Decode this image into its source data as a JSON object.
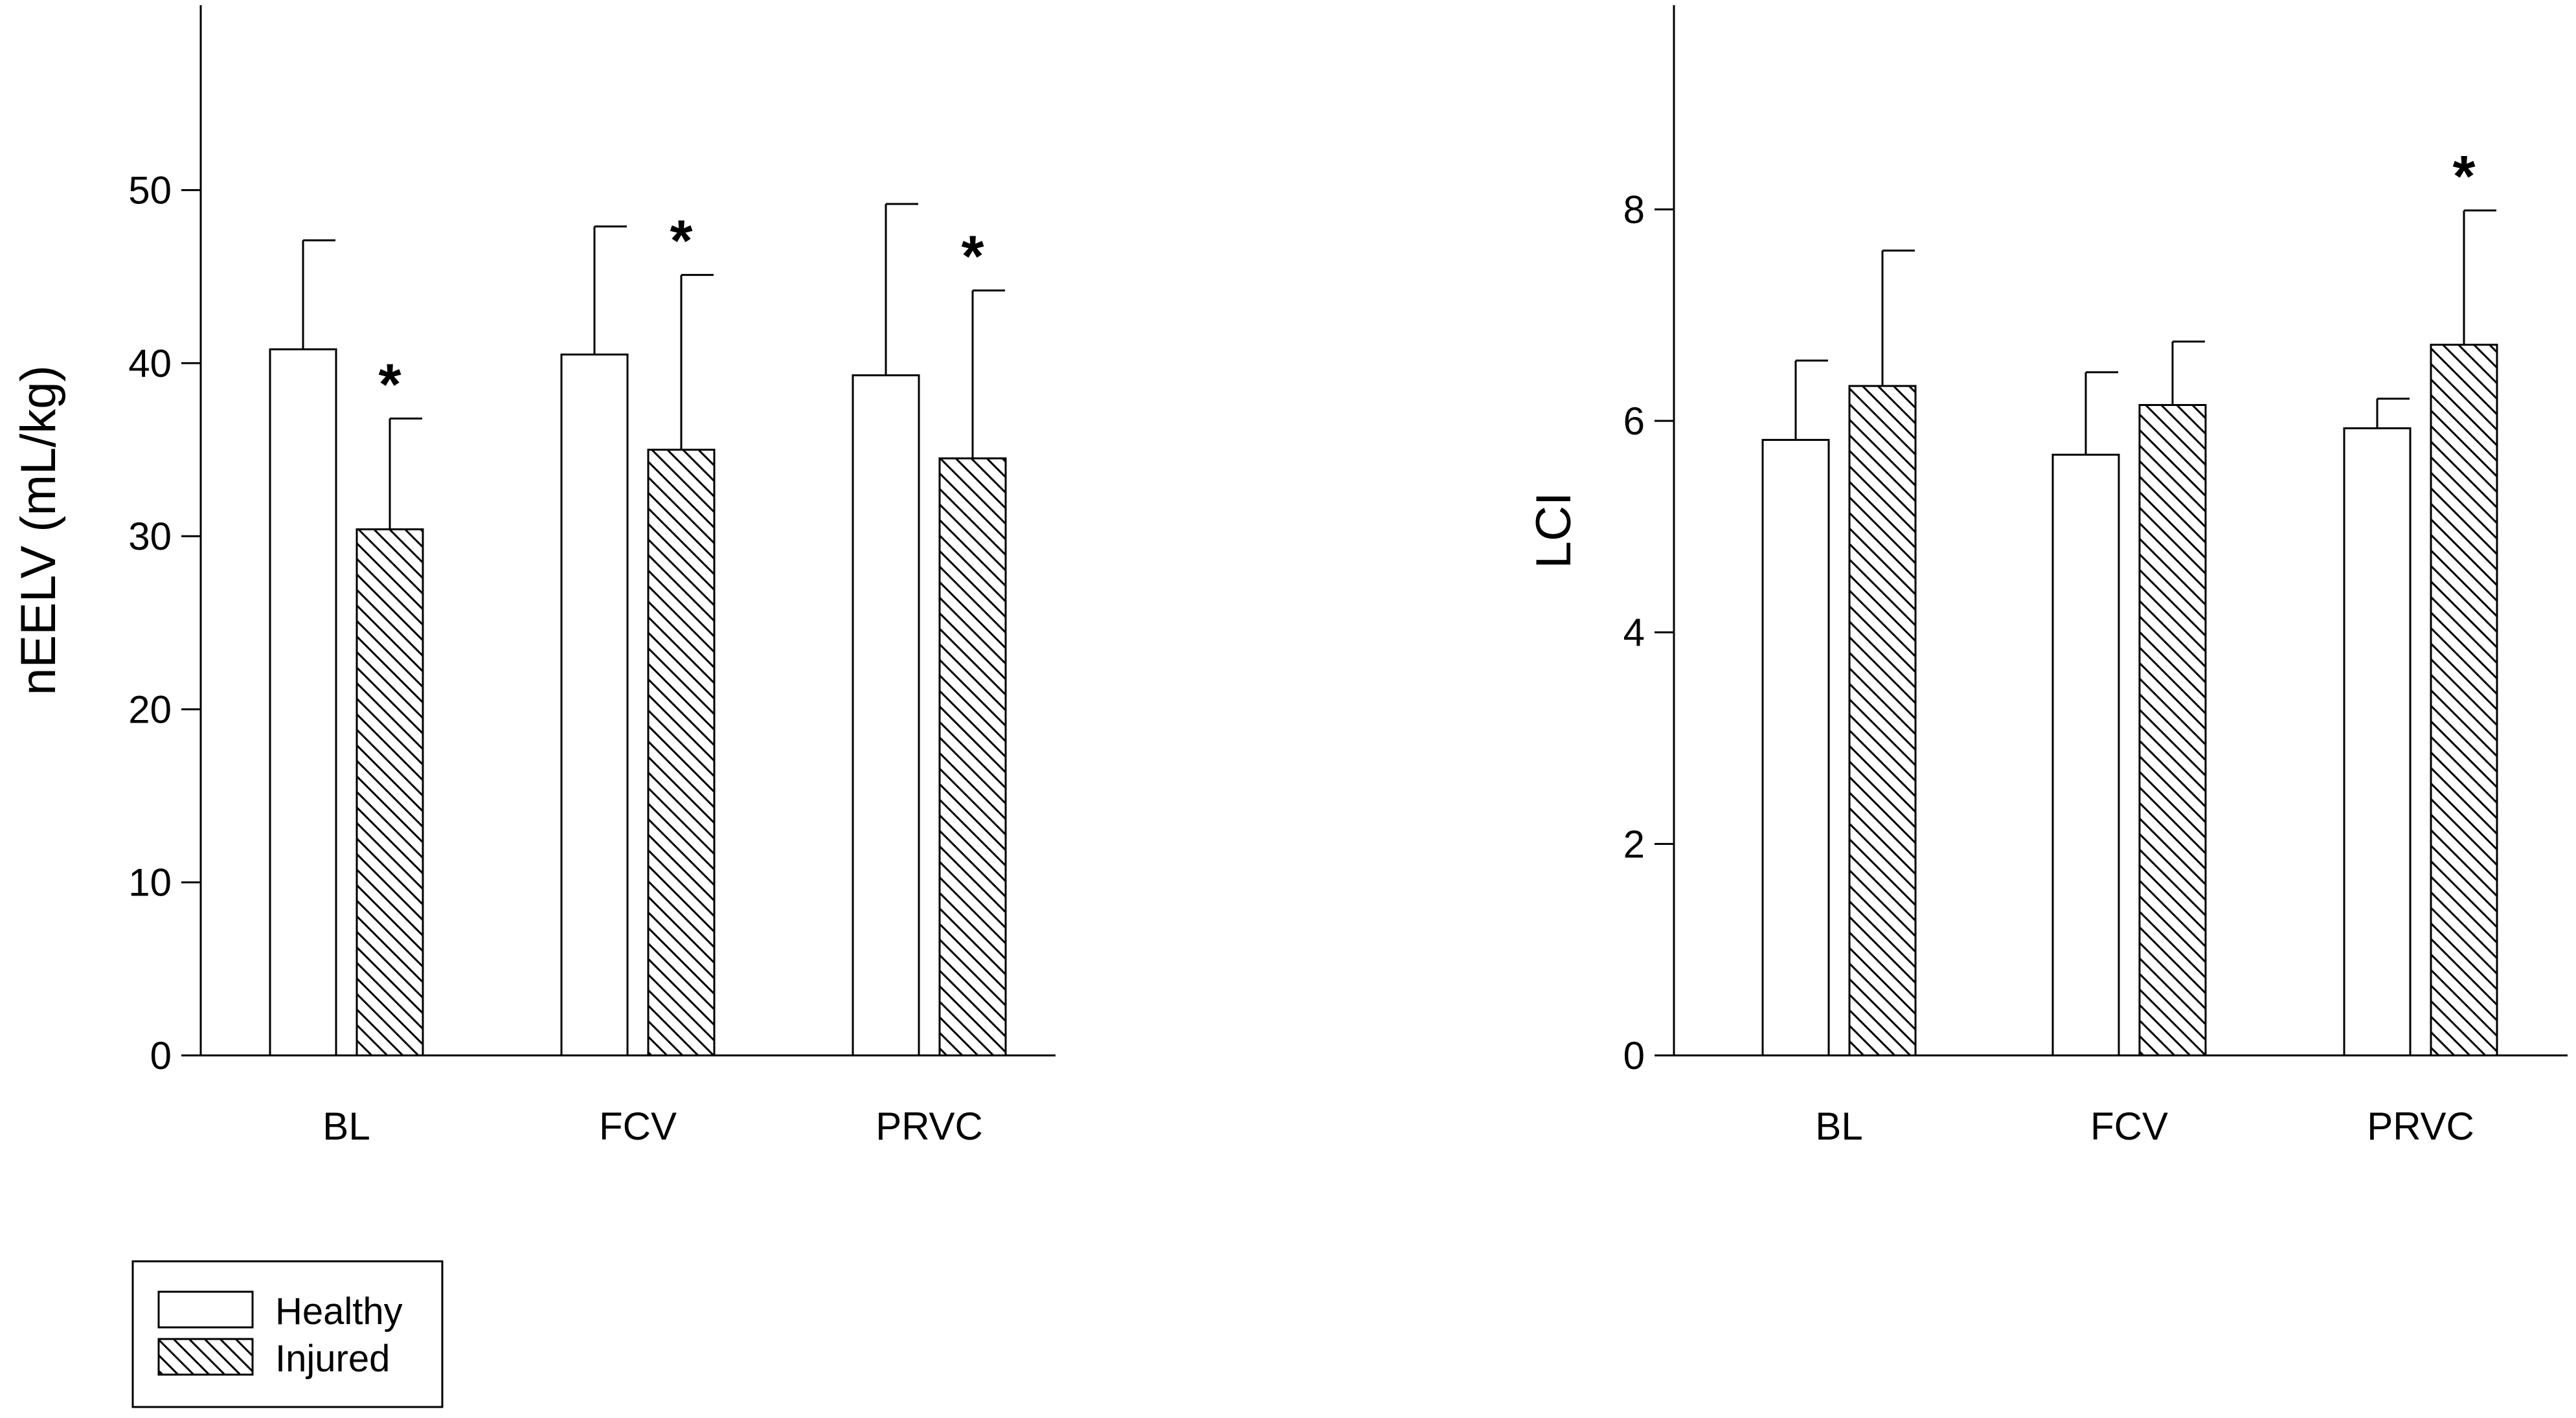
{
  "chart_data": [
    {
      "type": "bar",
      "title": "",
      "xlabel": "",
      "ylabel": "nEELV (mL/kg)",
      "ylim": [
        0,
        55
      ],
      "yticks": [
        "0",
        "10",
        "20",
        "30",
        "40",
        "50"
      ],
      "categories": [
        "BL",
        "FCV",
        "PRVC"
      ],
      "series": [
        {
          "name": "Healthy",
          "values": [
            40.8,
            40.5,
            39.3
          ],
          "error": [
            6.3,
            7.4,
            9.9
          ],
          "significant": [
            false,
            false,
            false
          ]
        },
        {
          "name": "Injured",
          "values": [
            30.4,
            35.0,
            34.5
          ],
          "error": [
            6.4,
            10.1,
            9.7
          ],
          "significant": [
            true,
            true,
            true
          ]
        }
      ],
      "significance_marker": "*",
      "grid": false
    },
    {
      "type": "bar",
      "title": "",
      "xlabel": "",
      "ylabel": "LCI",
      "ylim": [
        0,
        9
      ],
      "yticks": [
        "0",
        "2",
        "4",
        "6",
        "8"
      ],
      "categories": [
        "BL",
        "FCV",
        "PRVC"
      ],
      "series": [
        {
          "name": "Healthy",
          "values": [
            5.82,
            5.68,
            5.93
          ],
          "error": [
            0.75,
            0.78,
            0.28
          ],
          "significant": [
            false,
            false,
            false
          ]
        },
        {
          "name": "Injured",
          "values": [
            6.33,
            6.15,
            6.72
          ],
          "error": [
            1.28,
            0.6,
            1.27
          ],
          "significant": [
            false,
            false,
            true
          ]
        }
      ],
      "significance_marker": "*",
      "grid": false
    }
  ],
  "legend": {
    "position": "bottom-left",
    "entries": [
      {
        "label": "Healthy",
        "pattern": "plain"
      },
      {
        "label": "Injured",
        "pattern": "hatched"
      }
    ]
  }
}
